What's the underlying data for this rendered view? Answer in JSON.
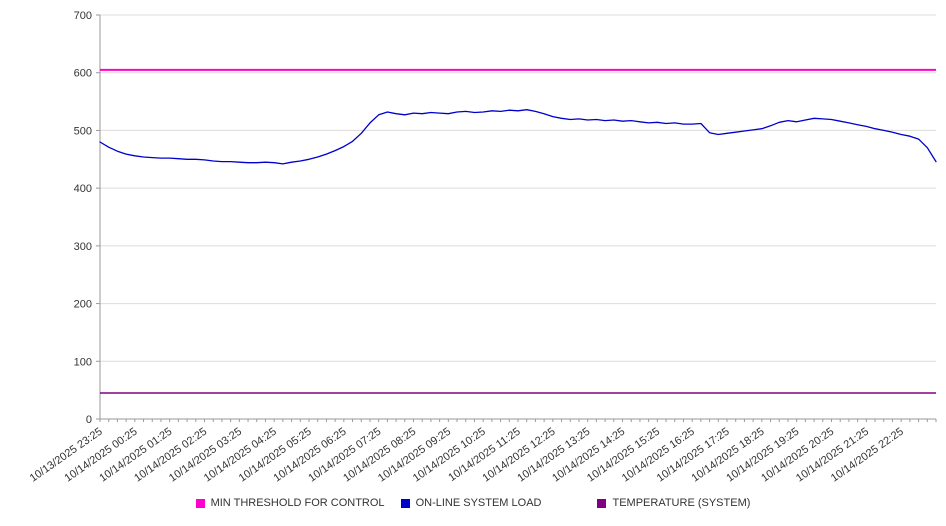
{
  "chart_data": {
    "type": "line",
    "title": "",
    "xlabel": "",
    "ylabel": "",
    "ylim": [
      0,
      700
    ],
    "yticks": [
      0,
      100,
      200,
      300,
      400,
      500,
      600,
      700
    ],
    "grid": "horizontal",
    "legend_position": "bottom",
    "x_span_hours": 24,
    "x_step_hours": 0.25,
    "x_labels": [
      "10/13/2025 23:25",
      "10/14/2025 00:25",
      "10/14/2025 01:25",
      "10/14/2025 02:25",
      "10/14/2025 03:25",
      "10/14/2025 04:25",
      "10/14/2025 05:25",
      "10/14/2025 06:25",
      "10/14/2025 07:25",
      "10/14/2025 08:25",
      "10/14/2025 09:25",
      "10/14/2025 10:25",
      "10/14/2025 11:25",
      "10/14/2025 12:25",
      "10/14/2025 13:25",
      "10/14/2025 14:25",
      "10/14/2025 15:25",
      "10/14/2025 16:25",
      "10/14/2025 17:25",
      "10/14/2025 18:25",
      "10/14/2025 19:25",
      "10/14/2025 20:25",
      "10/14/2025 21:25",
      "10/14/2025 22:25"
    ],
    "series": [
      {
        "name": "MIN THRESHOLD FOR CONTROL",
        "kind": "hline",
        "value": 605,
        "color": "#ff00cc",
        "stroke_width": 2
      },
      {
        "name": "ON-LINE SYSTEM LOAD",
        "kind": "line",
        "color": "#0000cd",
        "stroke_width": 1.3,
        "values": [
          480,
          471,
          464,
          459,
          456,
          454,
          453,
          452,
          452,
          451,
          450,
          450,
          449,
          447,
          446,
          446,
          445,
          444,
          444,
          445,
          444,
          442,
          445,
          447,
          450,
          454,
          459,
          465,
          472,
          481,
          495,
          513,
          527,
          532,
          529,
          527,
          530,
          529,
          531,
          530,
          529,
          532,
          533,
          531,
          532,
          534,
          533,
          535,
          534,
          536,
          533,
          529,
          524,
          521,
          519,
          520,
          518,
          519,
          517,
          518,
          516,
          517,
          515,
          513,
          514,
          512,
          513,
          511,
          511,
          512,
          496,
          493,
          495,
          497,
          499,
          501,
          503,
          508,
          514,
          517,
          515,
          518,
          521,
          520,
          519,
          516,
          513,
          510,
          507,
          503,
          500,
          497,
          493,
          490,
          485,
          470,
          446
        ]
      },
      {
        "name": "TEMPERATURE (SYSTEM)",
        "kind": "hline",
        "value": 45,
        "color": "#800080",
        "stroke_width": 1.5
      }
    ]
  }
}
